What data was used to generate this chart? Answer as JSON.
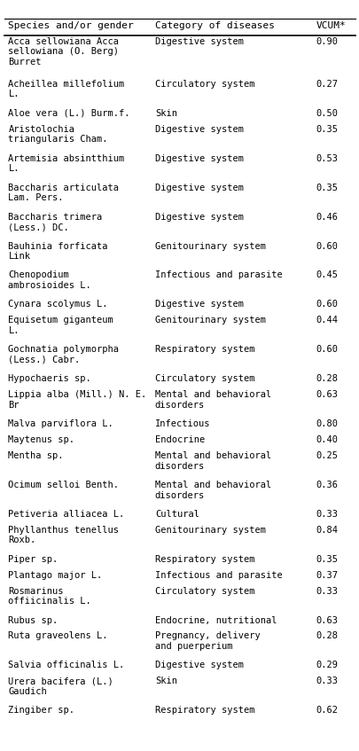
{
  "header": [
    "Species and/or gender",
    "Category of diseases",
    "VCUM*"
  ],
  "rows": [
    [
      "Acca sellowiana Acca\nsellowiana (O. Berg)\nBurret",
      "Digestive system",
      "0.90"
    ],
    [
      "Acheillea millefolium\nL.",
      "Circulatory system",
      "0.27"
    ],
    [
      "Aloe vera (L.) Burm.f.",
      "Skin",
      "0.50"
    ],
    [
      "Aristolochia\ntriangularis Cham.",
      "Digestive system",
      "0.35"
    ],
    [
      "Artemisia absintthium\nL.",
      "Digestive system",
      "0.53"
    ],
    [
      "Baccharis articulata\nLam. Pers.",
      "Digestive system",
      "0.35"
    ],
    [
      "Baccharis trimera\n(Less.) DC.",
      "Digestive system",
      "0.46"
    ],
    [
      "Bauhinia forficata\nLink",
      "Genitourinary system",
      "0.60"
    ],
    [
      "Chenopodium\nambrosioides L.",
      "Infectious and parasite",
      "0.45"
    ],
    [
      "Cynara scolymus L.",
      "Digestive system",
      "0.60"
    ],
    [
      "Equisetum giganteum\nL.",
      "Genitourinary system",
      "0.44"
    ],
    [
      "Gochnatia polymorpha\n(Less.) Cabr.",
      "Respiratory system",
      "0.60"
    ],
    [
      "Hypochaeris sp.",
      "Circulatory system",
      "0.28"
    ],
    [
      "Lippia alba (Mill.) N. E.\nBr",
      "Mental and behavioral\ndisorders",
      "0.63"
    ],
    [
      "Malva parviflora L.",
      "Infectious",
      "0.80"
    ],
    [
      "Maytenus sp.",
      "Endocrine",
      "0.40"
    ],
    [
      "Mentha sp.",
      "Mental and behavioral\ndisorders",
      "0.25"
    ],
    [
      "Ocimum selloi Benth.",
      "Mental and behavioral\ndisorders",
      "0.36"
    ],
    [
      "Petiveria alliacea L.",
      "Cultural",
      "0.33"
    ],
    [
      "Phyllanthus tenellus\nRoxb.",
      "Genitourinary system",
      "0.84"
    ],
    [
      "Piper sp.",
      "Respiratory system",
      "0.35"
    ],
    [
      "Plantago major L.",
      "Infectious and parasite",
      "0.37"
    ],
    [
      "Rosmarinus\noffiicinalis L.",
      "Circulatory system",
      "0.33"
    ],
    [
      "Rubus sp.",
      "Endocrine, nutritional",
      "0.63"
    ],
    [
      "Ruta graveolens L.",
      "Pregnancy, delivery\nand puerperium",
      "0.28"
    ],
    [
      "Salvia officinalis L.",
      "Digestive system",
      "0.29"
    ],
    [
      "Urera bacifera (L.)\nGaudich",
      "Skin",
      "0.33"
    ],
    [
      "Zingiber sp.",
      "Respiratory system",
      "0.62"
    ]
  ],
  "font_family": "monospace",
  "font_size": 7.5,
  "header_font_size": 8.0,
  "bg_color": "#ffffff",
  "text_color": "#000000",
  "line_color": "#000000"
}
